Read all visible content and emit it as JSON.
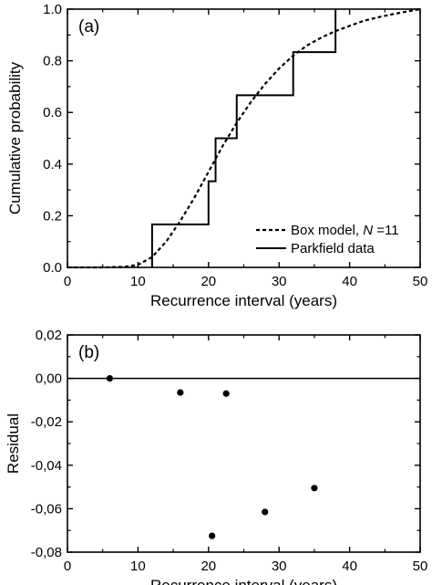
{
  "chart_data": [
    {
      "type": "line",
      "panel_label": "(a)",
      "xlabel": "Recurrence interval (years)",
      "ylabel": "Cumulative probability",
      "xlim": [
        0,
        50
      ],
      "ylim": [
        0,
        1.0
      ],
      "x_ticks": [
        0,
        10,
        20,
        30,
        40,
        50
      ],
      "x_tick_labels": [
        "0",
        "10",
        "20",
        "30",
        "40",
        "50"
      ],
      "y_ticks": [
        0,
        0.2,
        0.4,
        0.6,
        0.8,
        1.0
      ],
      "y_tick_labels": [
        "0.0",
        "0.2",
        "0.4",
        "0.6",
        "0.8",
        "1.0"
      ],
      "grid": false,
      "legend_position": "bottom-right",
      "legend": [
        {
          "name_prefix": "Box model, ",
          "name_italic": "N",
          "name_suffix": " =11",
          "style": "dashed"
        },
        {
          "name": "Parkfield data",
          "style": "solid"
        }
      ],
      "series": [
        {
          "name": "Box model, N =11",
          "style": "dashed",
          "x": [
            0,
            5,
            8,
            10,
            12,
            14,
            16,
            18,
            20,
            22,
            24,
            26,
            28,
            30,
            32,
            34,
            36,
            38,
            40,
            42,
            44,
            46,
            48,
            50
          ],
          "y": [
            0,
            0,
            0.002,
            0.01,
            0.04,
            0.1,
            0.18,
            0.27,
            0.37,
            0.47,
            0.56,
            0.64,
            0.71,
            0.77,
            0.82,
            0.86,
            0.89,
            0.915,
            0.935,
            0.955,
            0.968,
            0.98,
            0.99,
            1.0
          ]
        },
        {
          "name": "Parkfield data",
          "style": "step",
          "x": [
            12,
            12,
            20,
            20,
            21,
            21,
            24,
            24,
            32,
            32,
            38,
            38
          ],
          "y": [
            0,
            0.1667,
            0.1667,
            0.3333,
            0.3333,
            0.5,
            0.5,
            0.6667,
            0.6667,
            0.8333,
            0.8333,
            1.0
          ]
        }
      ]
    },
    {
      "type": "scatter",
      "panel_label": "(b)",
      "xlabel": "Recurrence interval (years)",
      "ylabel": "Residual",
      "xlim": [
        0,
        50
      ],
      "ylim": [
        -0.08,
        0.02
      ],
      "x_ticks": [
        0,
        10,
        20,
        30,
        40,
        50
      ],
      "x_tick_labels": [
        "0",
        "10",
        "20",
        "30",
        "40",
        "50"
      ],
      "y_ticks": [
        0.02,
        0,
        -0.02,
        -0.04,
        -0.06,
        -0.08
      ],
      "y_tick_labels": [
        "0,02",
        "0,00",
        "-0,02",
        "-0,04",
        "-0,06",
        "-0,08"
      ],
      "grid": false,
      "reference_line_y": 0,
      "points": [
        {
          "x": 6,
          "y": 0.0
        },
        {
          "x": 16,
          "y": -0.0065
        },
        {
          "x": 22.5,
          "y": -0.007
        },
        {
          "x": 20.5,
          "y": -0.0725
        },
        {
          "x": 28,
          "y": -0.0615
        },
        {
          "x": 35,
          "y": -0.0505
        }
      ]
    }
  ]
}
